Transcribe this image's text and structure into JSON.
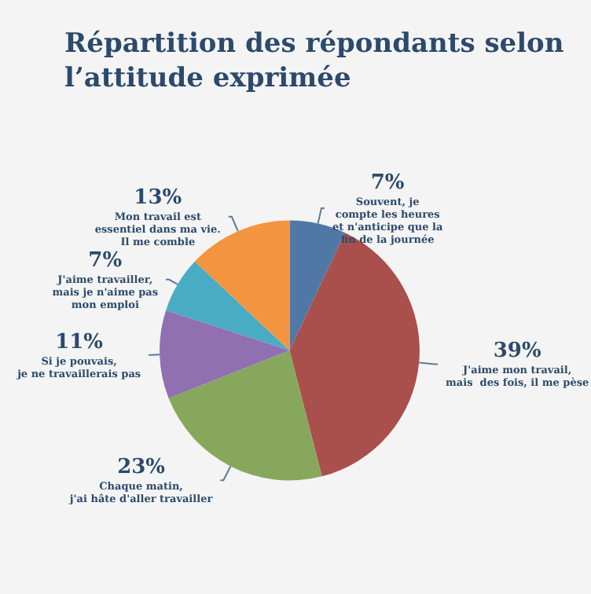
{
  "chart_data": {
    "type": "pie",
    "title": "Répartition des répondants selon\nl’attitude exprimée",
    "categories": [
      "Souvent, je\ncompte les heures\net n'anticipe que la\nfin de la journée",
      "J'aime mon travail,\nmais  des fois, il me pèse",
      "Chaque matin,\nj'ai hâte d'aller travailler",
      "Si je pouvais,\nje ne travaillerais pas",
      "J'aime travailler,\nmais je n'aime pas\nmon emploi",
      "Mon travail est\nessentiel dans ma vie.\nIl me comble"
    ],
    "values": [
      7,
      39,
      23,
      11,
      7,
      13
    ],
    "colors": [
      "#4f78a6",
      "#a9504d",
      "#87a85c",
      "#9070b0",
      "#4aabc4",
      "#f39540"
    ],
    "value_labels": [
      "7%",
      "39%",
      "23%",
      "11%",
      "7%",
      "13%"
    ]
  }
}
